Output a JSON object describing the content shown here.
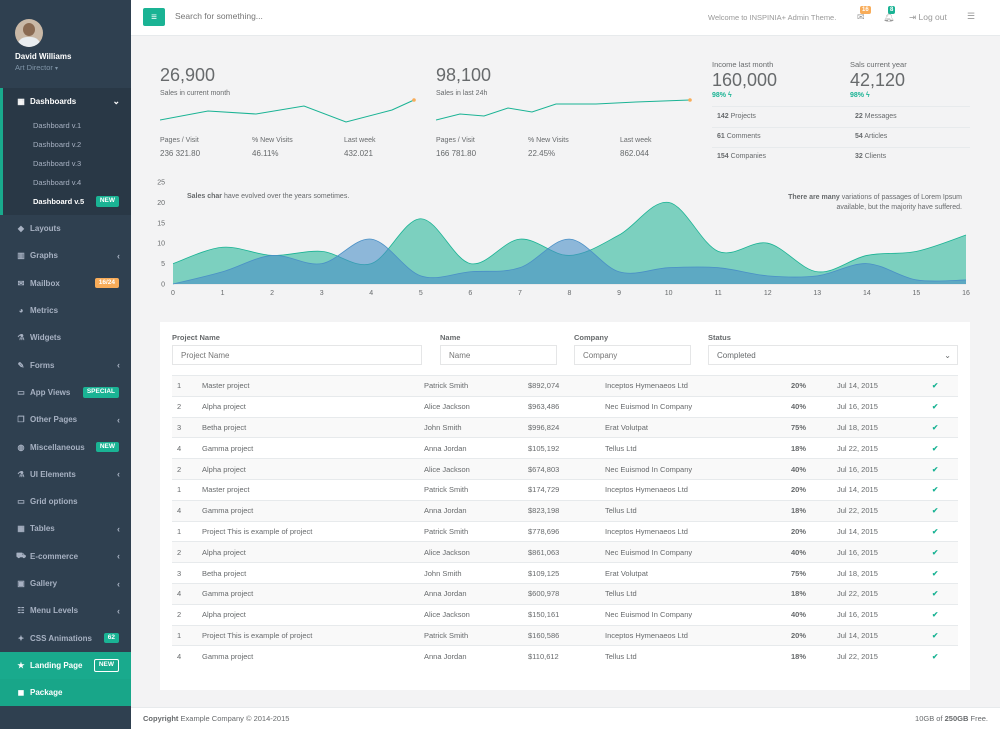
{
  "profile": {
    "name": "David Williams",
    "role": "Art Director"
  },
  "sidebar": {
    "dashboards": "Dashboards",
    "sub": [
      "Dashboard v.1",
      "Dashboard v.2",
      "Dashboard v.3",
      "Dashboard v.4",
      "Dashboard v.5"
    ],
    "sub_badge": "NEW",
    "items": [
      {
        "label": "Layouts",
        "icon": "diamond-icon",
        "glyph": "◆",
        "chev": false,
        "badge": ""
      },
      {
        "label": "Graphs",
        "icon": "bar-chart-icon",
        "glyph": "▥",
        "chev": true,
        "badge": ""
      },
      {
        "label": "Mailbox",
        "icon": "envelope-icon",
        "glyph": "✉",
        "chev": false,
        "badge": "16/24",
        "badge_color": "orange"
      },
      {
        "label": "Metrics",
        "icon": "pie-chart-icon",
        "glyph": "◕",
        "chev": false,
        "badge": ""
      },
      {
        "label": "Widgets",
        "icon": "flask-icon",
        "glyph": "⚗",
        "chev": false,
        "badge": ""
      },
      {
        "label": "Forms",
        "icon": "edit-icon",
        "glyph": "✎",
        "chev": true,
        "badge": ""
      },
      {
        "label": "App Views",
        "icon": "desktop-icon",
        "glyph": "▭",
        "chev": false,
        "badge": "SPECIAL",
        "badge_color": "green"
      },
      {
        "label": "Other Pages",
        "icon": "files-icon",
        "glyph": "❐",
        "chev": true,
        "badge": ""
      },
      {
        "label": "Miscellaneous",
        "icon": "globe-icon",
        "glyph": "◍",
        "chev": false,
        "badge": "NEW",
        "badge_color": "green"
      },
      {
        "label": "UI Elements",
        "icon": "flask-icon",
        "glyph": "⚗",
        "chev": true,
        "badge": ""
      },
      {
        "label": "Grid options",
        "icon": "laptop-icon",
        "glyph": "▭",
        "chev": false,
        "badge": ""
      },
      {
        "label": "Tables",
        "icon": "table-icon",
        "glyph": "▦",
        "chev": true,
        "badge": ""
      },
      {
        "label": "E-commerce",
        "icon": "cart-icon",
        "glyph": "⛟",
        "chev": true,
        "badge": ""
      },
      {
        "label": "Gallery",
        "icon": "picture-icon",
        "glyph": "▣",
        "chev": true,
        "badge": ""
      },
      {
        "label": "Menu Levels",
        "icon": "sitemap-icon",
        "glyph": "☷",
        "chev": true,
        "badge": ""
      },
      {
        "label": "CSS Animations",
        "icon": "magic-icon",
        "glyph": "✦",
        "chev": false,
        "badge": "62",
        "badge_color": "green"
      }
    ],
    "landing": "Landing Page",
    "landing_badge": "NEW",
    "package": "Package"
  },
  "topbar": {
    "search_placeholder": "Search for something...",
    "welcome": "Welcome to INSPINIA+ Admin Theme.",
    "mail_count": "16",
    "bell_count": "8",
    "logout": "Log out"
  },
  "stats": {
    "block1": {
      "value": "26,900",
      "label": "Sales in current month",
      "metrics": [
        {
          "label": "Pages / Visit",
          "value": "236 321.80"
        },
        {
          "label": "% New Visits",
          "value": "46.11%"
        },
        {
          "label": "Last week",
          "value": "432.021"
        }
      ]
    },
    "block2": {
      "value": "98,100",
      "label": "Sales in last 24h",
      "metrics": [
        {
          "label": "Pages / Visit",
          "value": "166 781.80"
        },
        {
          "label": "% New Visits",
          "value": "22.45%"
        },
        {
          "label": "Last week",
          "value": "862.044"
        }
      ]
    },
    "income": {
      "title": "Income last month",
      "value": "160,000",
      "pct": "98%"
    },
    "sales": {
      "title": "Sals current year",
      "value": "42,120",
      "pct": "98%"
    },
    "list_left": [
      {
        "n": "142",
        "t": "Projects"
      },
      {
        "n": "61",
        "t": "Comments"
      },
      {
        "n": "154",
        "t": "Companies"
      }
    ],
    "list_right": [
      {
        "n": "22",
        "t": "Messages"
      },
      {
        "n": "54",
        "t": "Articles"
      },
      {
        "n": "32",
        "t": "Clients"
      }
    ]
  },
  "chart_data": {
    "type": "area",
    "x": [
      0,
      1,
      2,
      3,
      4,
      5,
      6,
      7,
      8,
      9,
      10,
      11,
      12,
      13,
      14,
      15,
      16
    ],
    "ylim": [
      0,
      25
    ],
    "yticks": [
      0,
      5,
      10,
      15,
      20,
      25
    ],
    "series": [
      {
        "color": "#1ab394",
        "values": [
          5,
          9,
          7,
          8,
          5,
          16,
          5,
          11,
          7,
          12,
          20,
          8,
          10,
          3,
          7,
          8,
          12
        ]
      },
      {
        "color": "#4a90c6",
        "values": [
          0,
          3,
          7,
          5,
          11,
          2,
          3,
          4,
          11,
          3,
          4,
          4,
          2,
          2,
          5,
          1,
          1
        ]
      }
    ],
    "note_left_bold": "Sales char",
    "note_left": "have evolved over the years sometimes.",
    "note_right_bold": "There are many",
    "note_right": "variations of passages of Lorem Ipsum available, but the majority have suffered."
  },
  "table": {
    "filters": {
      "project_label": "Project Name",
      "project_ph": "Project Name",
      "name_label": "Name",
      "name_ph": "Name",
      "company_label": "Company",
      "company_ph": "Company",
      "status_label": "Status",
      "status_value": "Completed"
    },
    "rows": [
      {
        "id": "1",
        "project": "Master project",
        "name": "Patrick Smith",
        "amount": "$892,074",
        "company": "Inceptos Hymenaeos Ltd",
        "pct": "20%",
        "date": "Jul 14, 2015"
      },
      {
        "id": "2",
        "project": "Alpha project",
        "name": "Alice Jackson",
        "amount": "$963,486",
        "company": "Nec Euismod In Company",
        "pct": "40%",
        "date": "Jul 16, 2015"
      },
      {
        "id": "3",
        "project": "Betha project",
        "name": "John Smith",
        "amount": "$996,824",
        "company": "Erat Volutpat",
        "pct": "75%",
        "date": "Jul 18, 2015"
      },
      {
        "id": "4",
        "project": "Gamma project",
        "name": "Anna Jordan",
        "amount": "$105,192",
        "company": "Tellus Ltd",
        "pct": "18%",
        "date": "Jul 22, 2015"
      },
      {
        "id": "2",
        "project": "Alpha project",
        "name": "Alice Jackson",
        "amount": "$674,803",
        "company": "Nec Euismod In Company",
        "pct": "40%",
        "date": "Jul 16, 2015"
      },
      {
        "id": "1",
        "project": "Master project",
        "name": "Patrick Smith",
        "amount": "$174,729",
        "company": "Inceptos Hymenaeos Ltd",
        "pct": "20%",
        "date": "Jul 14, 2015"
      },
      {
        "id": "4",
        "project": "Gamma project",
        "name": "Anna Jordan",
        "amount": "$823,198",
        "company": "Tellus Ltd",
        "pct": "18%",
        "date": "Jul 22, 2015"
      },
      {
        "id": "1",
        "project": "Project This is example of project",
        "name": "Patrick Smith",
        "amount": "$778,696",
        "company": "Inceptos Hymenaeos Ltd",
        "pct": "20%",
        "date": "Jul 14, 2015"
      },
      {
        "id": "2",
        "project": "Alpha project",
        "name": "Alice Jackson",
        "amount": "$861,063",
        "company": "Nec Euismod In Company",
        "pct": "40%",
        "date": "Jul 16, 2015"
      },
      {
        "id": "3",
        "project": "Betha project",
        "name": "John Smith",
        "amount": "$109,125",
        "company": "Erat Volutpat",
        "pct": "75%",
        "date": "Jul 18, 2015"
      },
      {
        "id": "4",
        "project": "Gamma project",
        "name": "Anna Jordan",
        "amount": "$600,978",
        "company": "Tellus Ltd",
        "pct": "18%",
        "date": "Jul 22, 2015"
      },
      {
        "id": "2",
        "project": "Alpha project",
        "name": "Alice Jackson",
        "amount": "$150,161",
        "company": "Nec Euismod In Company",
        "pct": "40%",
        "date": "Jul 16, 2015"
      },
      {
        "id": "1",
        "project": "Project This is example of project",
        "name": "Patrick Smith",
        "amount": "$160,586",
        "company": "Inceptos Hymenaeos Ltd",
        "pct": "20%",
        "date": "Jul 14, 2015"
      },
      {
        "id": "4",
        "project": "Gamma project",
        "name": "Anna Jordan",
        "amount": "$110,612",
        "company": "Tellus Ltd",
        "pct": "18%",
        "date": "Jul 22, 2015"
      }
    ]
  },
  "footer": {
    "copyright_bold": "Copyright",
    "copyright": "Example Company © 2014-2015",
    "storage_pre": "10GB of ",
    "storage_bold": "250GB",
    "storage_post": " Free."
  }
}
